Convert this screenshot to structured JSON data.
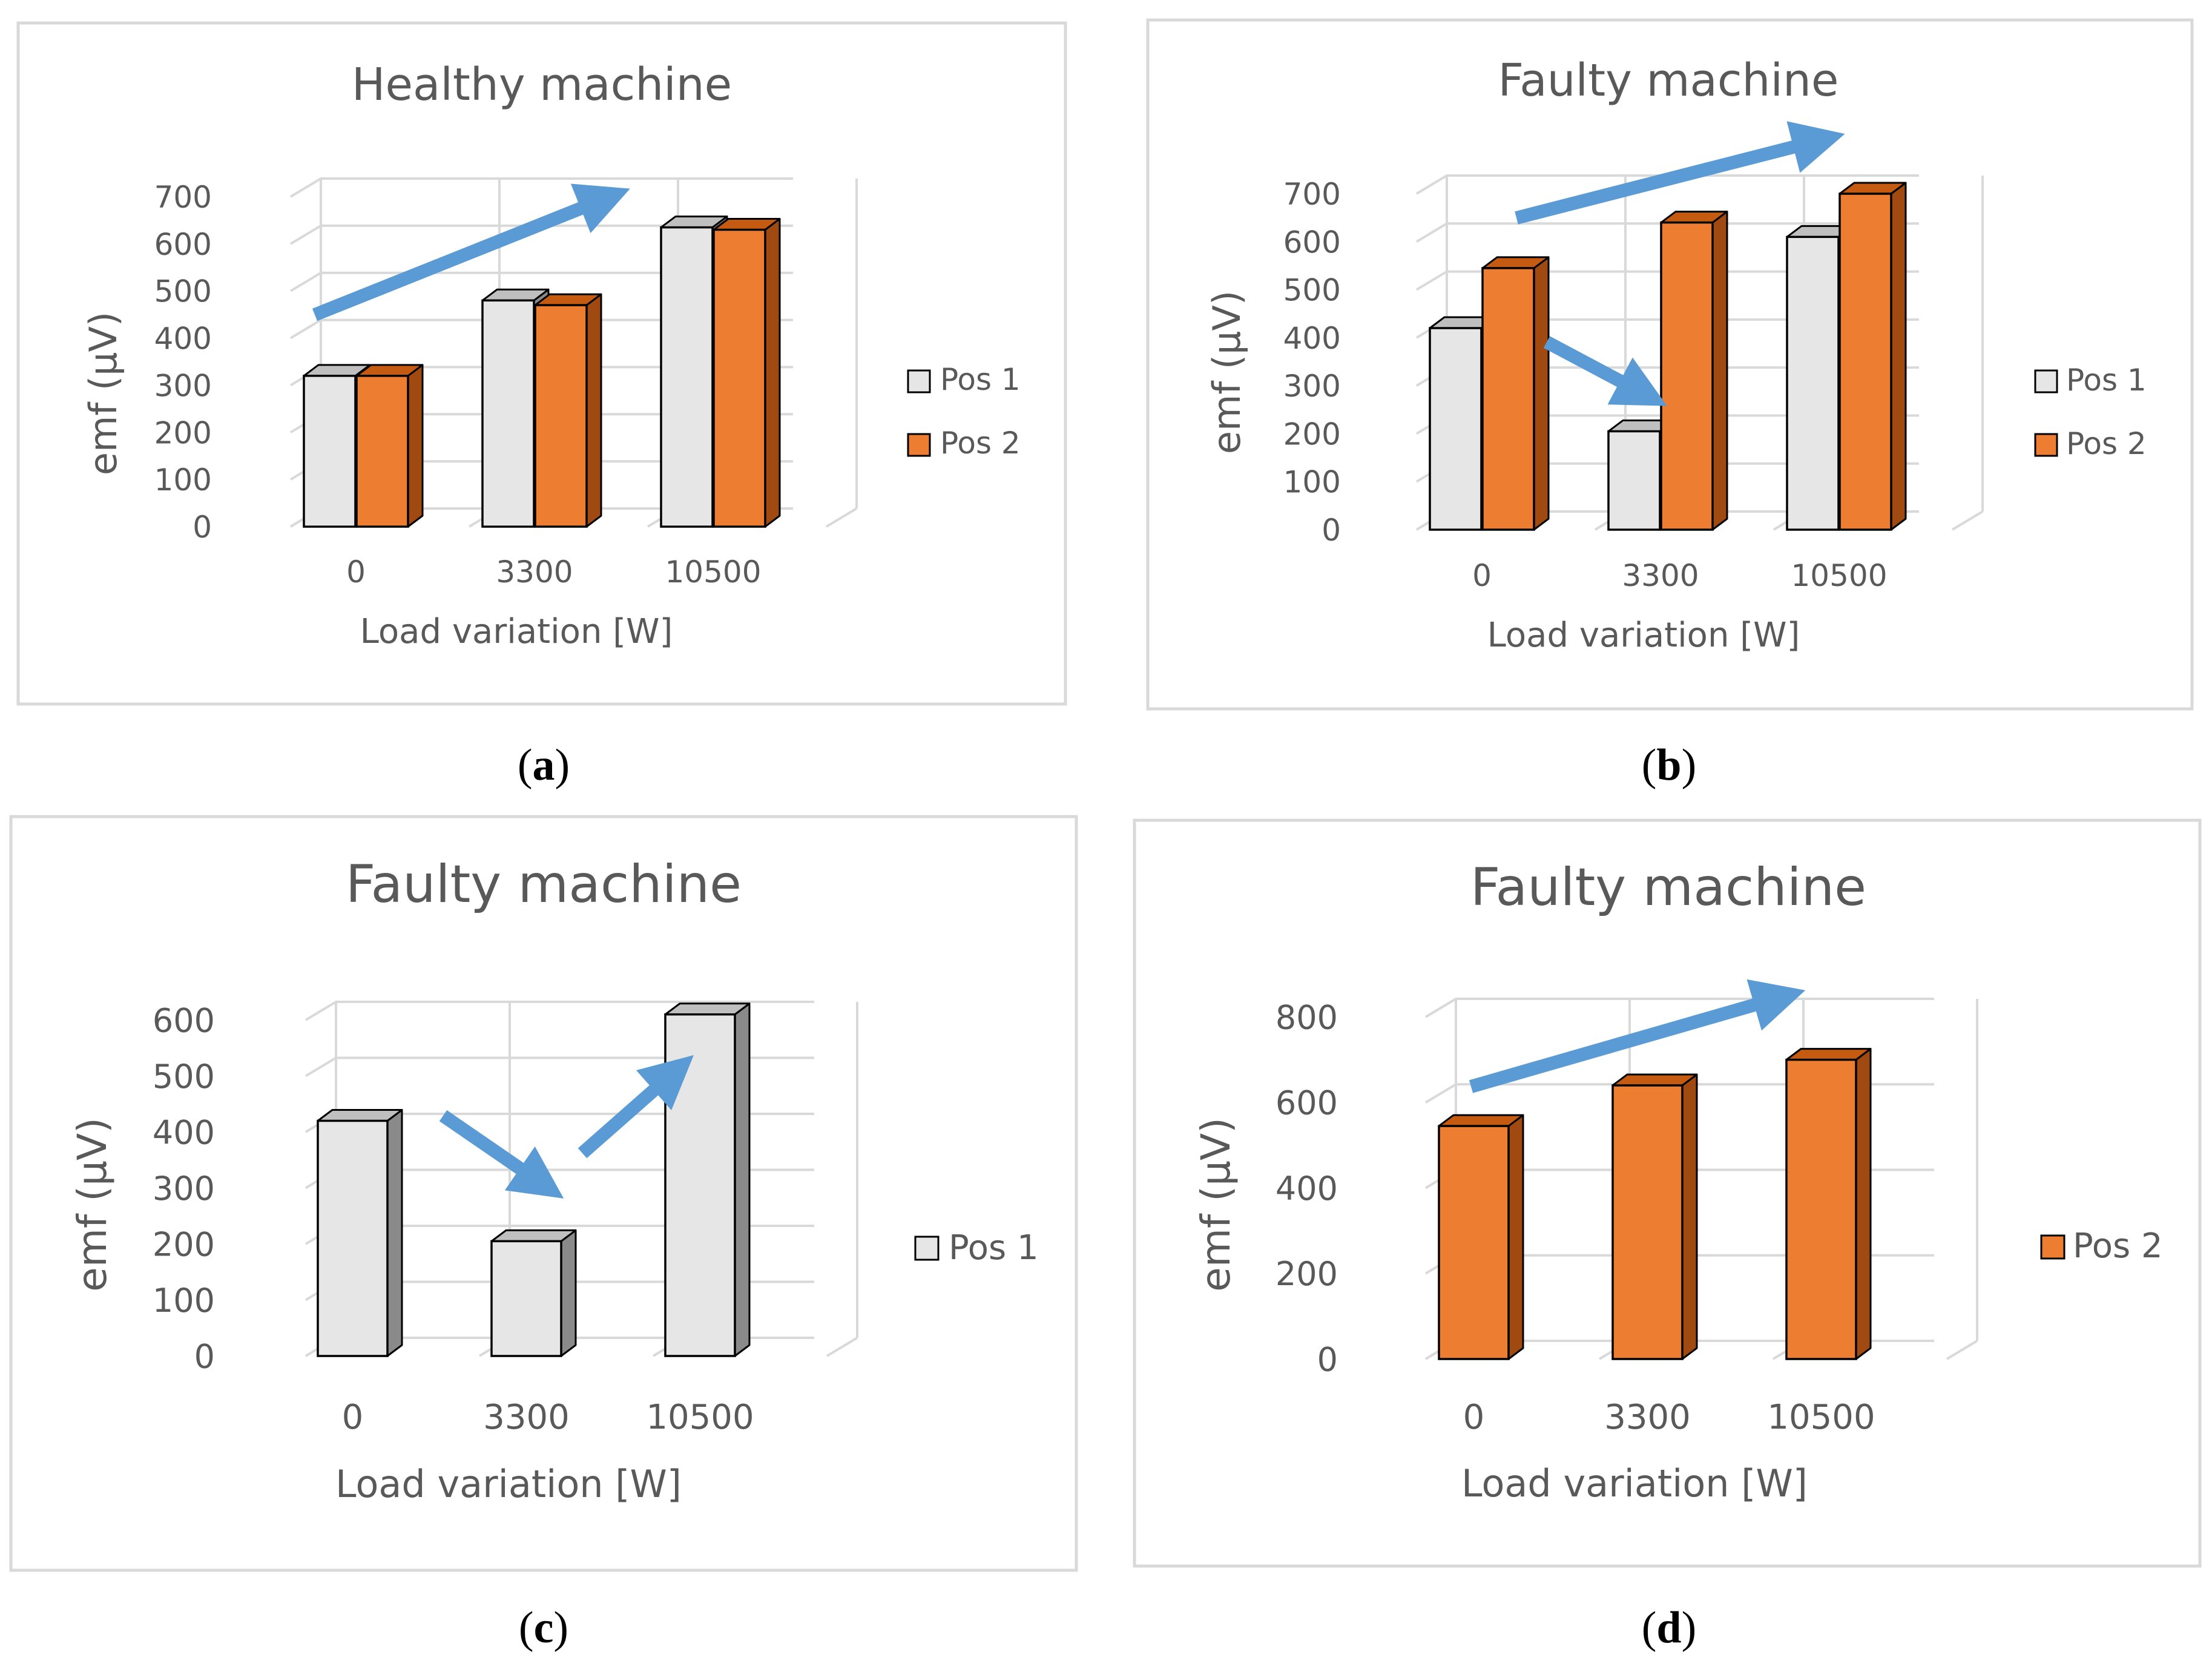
{
  "figure": {
    "captions": [
      "a",
      "b",
      "c",
      "d"
    ]
  },
  "colors": {
    "pos1_front": "#e7e6e6",
    "pos1_top": "#bfbfbf",
    "pos1_side": "#8a8a8a",
    "pos2_front": "#ed7d31",
    "pos2_top": "#c55a11",
    "pos2_side": "#a04a12",
    "arrow": "#5b9bd5",
    "grid": "#d9d9d9",
    "border": "#d9d9d9"
  },
  "chart_data": [
    {
      "type": "bar",
      "title": "Healthy machine",
      "xlabel": "Load variation  [W]",
      "ylabel": "emf (μV)",
      "categories": [
        "0",
        "3300",
        "10500"
      ],
      "series": [
        {
          "name": "Pos 1",
          "values": [
            320,
            480,
            635
          ]
        },
        {
          "name": "Pos 2",
          "values": [
            320,
            470,
            630
          ]
        }
      ],
      "ylim": [
        0,
        700
      ],
      "yticks": [
        "0",
        "100",
        "200",
        "300",
        "400",
        "500",
        "600",
        "700"
      ],
      "legend": "right",
      "annotations": [
        {
          "type": "arrow",
          "direction": "up-right"
        }
      ]
    },
    {
      "type": "bar",
      "title": "Faulty machine",
      "xlabel": "Load variation  [W]",
      "ylabel": "emf (μV)",
      "categories": [
        "0",
        "3300",
        "10500"
      ],
      "series": [
        {
          "name": "Pos 1",
          "values": [
            420,
            205,
            610
          ]
        },
        {
          "name": "Pos 2",
          "values": [
            545,
            640,
            700
          ]
        }
      ],
      "ylim": [
        0,
        700
      ],
      "yticks": [
        "0",
        "100",
        "200",
        "300",
        "400",
        "500",
        "600",
        "700"
      ],
      "legend": "right",
      "annotations": [
        {
          "type": "arrow",
          "direction": "up-right"
        },
        {
          "type": "arrow",
          "direction": "down-right"
        }
      ]
    },
    {
      "type": "bar",
      "title": "Faulty machine",
      "xlabel": "Load variation  [W]",
      "ylabel": "emf (μV)",
      "categories": [
        "0",
        "3300",
        "10500"
      ],
      "series": [
        {
          "name": "Pos 1",
          "values": [
            420,
            205,
            610
          ]
        }
      ],
      "ylim": [
        0,
        600
      ],
      "yticks": [
        "0",
        "100",
        "200",
        "300",
        "400",
        "500",
        "600"
      ],
      "legend": "right",
      "annotations": [
        {
          "type": "arrow",
          "direction": "down-right"
        },
        {
          "type": "arrow",
          "direction": "up-right"
        }
      ]
    },
    {
      "type": "bar",
      "title": "Faulty machine",
      "xlabel": "Load variation  [W]",
      "ylabel": "emf (μV)",
      "categories": [
        "0",
        "3300",
        "10500"
      ],
      "series": [
        {
          "name": "Pos 2",
          "values": [
            545,
            640,
            700
          ]
        }
      ],
      "ylim": [
        0,
        800
      ],
      "yticks": [
        "0",
        "200",
        "400",
        "600",
        "800"
      ],
      "legend": "right",
      "annotations": [
        {
          "type": "arrow",
          "direction": "up-right"
        }
      ]
    }
  ]
}
